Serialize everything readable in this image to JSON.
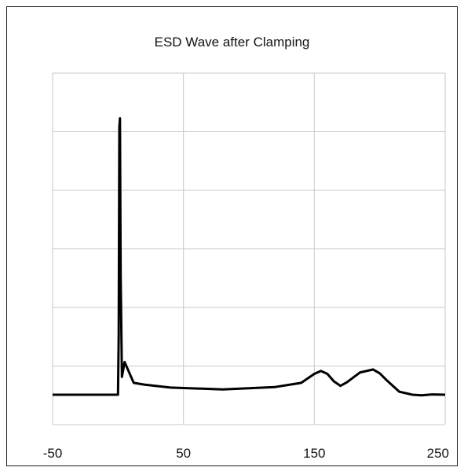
{
  "chart_data": {
    "type": "line",
    "title": "ESD Wave after Clamping",
    "xlabel": "",
    "ylabel": "",
    "xlim": [
      -50,
      250
    ],
    "ylim": [
      0,
      1
    ],
    "x_ticks": [
      "-50",
      "50",
      "150",
      "250"
    ],
    "grid": true,
    "legend": "none",
    "colors": {
      "line": "#000000",
      "grid": "#c8c8c8",
      "frame": "#1a1a1a"
    },
    "series": [
      {
        "x": [
          -50,
          0,
          0.5,
          1,
          1.5,
          2,
          3,
          5,
          8,
          12,
          20,
          40,
          80,
          120,
          140,
          150,
          155,
          160,
          165,
          170,
          175,
          185,
          195,
          200,
          205,
          215,
          225,
          232,
          240,
          250
        ],
        "y": [
          0.0,
          0.0,
          0.2,
          0.9,
          0.93,
          0.4,
          0.06,
          0.11,
          0.08,
          0.04,
          0.034,
          0.024,
          0.018,
          0.026,
          0.04,
          0.07,
          0.08,
          0.07,
          0.045,
          0.03,
          0.042,
          0.075,
          0.085,
          0.072,
          0.05,
          0.01,
          0.0,
          -0.002,
          0.001,
          0.0
        ]
      }
    ]
  }
}
